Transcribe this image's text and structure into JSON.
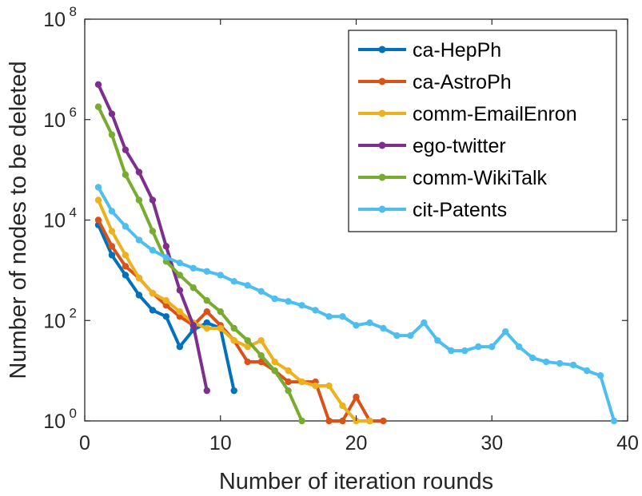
{
  "chart_data": {
    "type": "line",
    "title": "",
    "xlabel": "Number of iteration rounds",
    "ylabel": "Number of nodes to be deleted",
    "xlim": [
      0,
      40
    ],
    "ylim": [
      1,
      100000000
    ],
    "yscale": "log",
    "x_ticks": [
      0,
      10,
      20,
      30,
      40
    ],
    "y_ticks": [
      {
        "value": 1,
        "base": "10",
        "exp": "0"
      },
      {
        "value": 100,
        "base": "10",
        "exp": "2"
      },
      {
        "value": 10000,
        "base": "10",
        "exp": "4"
      },
      {
        "value": 1000000,
        "base": "10",
        "exp": "6"
      },
      {
        "value": 100000000,
        "base": "10",
        "exp": "8"
      }
    ],
    "grid": false,
    "legend_position": "top-right",
    "series": [
      {
        "name": "ca-HepPh",
        "color": "#0072BD",
        "x": [
          1,
          2,
          3,
          4,
          5,
          6,
          7,
          8,
          9,
          10,
          11
        ],
        "y": [
          8000,
          2000,
          800,
          320,
          160,
          120,
          30,
          65,
          90,
          70,
          4
        ]
      },
      {
        "name": "ca-AstroPh",
        "color": "#D95319",
        "x": [
          1,
          2,
          3,
          4,
          5,
          6,
          7,
          8,
          9,
          10,
          11,
          12,
          13,
          14,
          15,
          16,
          17,
          18,
          19,
          20,
          21,
          22
        ],
        "y": [
          10000,
          3000,
          1200,
          700,
          350,
          200,
          120,
          80,
          150,
          80,
          40,
          15,
          15,
          10,
          6,
          6,
          6,
          1,
          1,
          3,
          1,
          1
        ]
      },
      {
        "name": "comm-EmailEnron",
        "color": "#EDB120",
        "x": [
          1,
          2,
          3,
          4,
          5,
          6,
          7,
          8,
          9,
          10,
          11,
          12,
          13,
          14,
          15,
          16,
          17,
          18,
          19,
          20,
          21
        ],
        "y": [
          25000,
          6000,
          2000,
          700,
          350,
          250,
          150,
          90,
          70,
          70,
          40,
          30,
          40,
          15,
          10,
          6,
          5,
          5,
          2,
          1,
          1
        ]
      },
      {
        "name": "ego-twitter",
        "color": "#7E2F8E",
        "x": [
          1,
          2,
          3,
          4,
          5,
          6,
          7,
          8,
          9
        ],
        "y": [
          5000000,
          1300000,
          250000,
          90000,
          25000,
          3000,
          400,
          80,
          4
        ]
      },
      {
        "name": "comm-WikiTalk",
        "color": "#77AC30",
        "x": [
          1,
          2,
          3,
          4,
          5,
          6,
          7,
          8,
          9,
          10,
          11,
          12,
          13,
          14,
          15,
          16
        ],
        "y": [
          1800000,
          500000,
          80000,
          25000,
          6000,
          1500,
          800,
          450,
          250,
          150,
          70,
          40,
          20,
          10,
          4,
          1
        ]
      },
      {
        "name": "cit-Patents",
        "color": "#4DBEEE",
        "x": [
          1,
          2,
          3,
          4,
          5,
          6,
          7,
          8,
          9,
          10,
          11,
          12,
          13,
          14,
          15,
          16,
          17,
          18,
          19,
          20,
          21,
          22,
          23,
          24,
          25,
          26,
          27,
          28,
          29,
          30,
          31,
          32,
          33,
          34,
          35,
          36,
          37,
          38,
          39
        ],
        "y": [
          45000,
          15000,
          7500,
          4000,
          2500,
          1800,
          1400,
          1100,
          950,
          800,
          600,
          500,
          380,
          270,
          240,
          200,
          160,
          120,
          120,
          80,
          90,
          70,
          50,
          50,
          90,
          40,
          25,
          25,
          30,
          30,
          60,
          30,
          18,
          15,
          14,
          13,
          10,
          8,
          1
        ]
      }
    ]
  }
}
